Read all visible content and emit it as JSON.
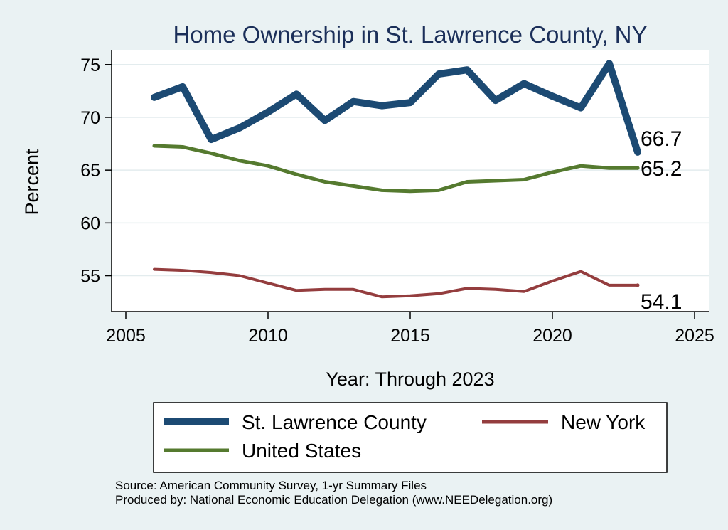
{
  "chart_data": {
    "type": "line",
    "title": "Home Ownership in St. Lawrence County, NY",
    "xlabel": "Year: Through 2023",
    "ylabel": "Percent",
    "xlim": [
      2004.5,
      2025.5
    ],
    "ylim": [
      51.6,
      76.4
    ],
    "xticks": [
      2005,
      2010,
      2015,
      2020,
      2025
    ],
    "yticks": [
      55,
      60,
      65,
      70,
      75
    ],
    "x": [
      2006,
      2007,
      2008,
      2009,
      2010,
      2011,
      2012,
      2013,
      2014,
      2015,
      2016,
      2017,
      2018,
      2019,
      2020,
      2021,
      2022,
      2023
    ],
    "series": [
      {
        "name": "St. Lawrence County",
        "color": "#1c4a73",
        "values": [
          71.9,
          72.9,
          67.9,
          69.0,
          70.5,
          72.2,
          69.7,
          71.5,
          71.1,
          71.4,
          74.1,
          74.5,
          71.6,
          73.2,
          72.0,
          70.9,
          75.1,
          66.7
        ],
        "end_label": "66.7"
      },
      {
        "name": "United States",
        "color": "#557a2f",
        "values": [
          67.3,
          67.2,
          66.6,
          65.9,
          65.4,
          64.6,
          63.9,
          63.5,
          63.1,
          63.0,
          63.1,
          63.9,
          64.0,
          64.1,
          64.8,
          65.4,
          65.2,
          65.2
        ],
        "end_label": "65.2"
      },
      {
        "name": "New York",
        "color": "#943d3e",
        "values": [
          55.6,
          55.5,
          55.3,
          55.0,
          54.3,
          53.6,
          53.7,
          53.7,
          53.0,
          53.1,
          53.3,
          53.8,
          53.7,
          53.5,
          54.5,
          55.4,
          54.1,
          54.1
        ],
        "end_label": "54.1"
      }
    ],
    "legend": {
      "position": "bottom",
      "entries": [
        "St. Lawrence County",
        "New York",
        "United States"
      ]
    }
  },
  "footer": {
    "source": "Source: American Community Survey, 1-yr Summary Files",
    "produced_by": "Produced by: National Economic Education Delegation (www.NEEDelegation.org)"
  }
}
